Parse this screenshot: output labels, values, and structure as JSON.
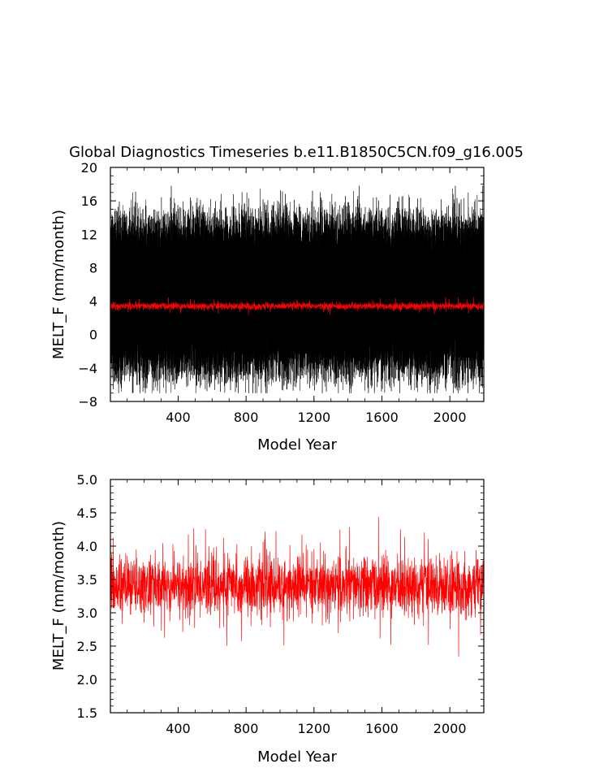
{
  "title": "Global Diagnostics Timeseries b.e11.B1850C5CN.f09_g16.005",
  "colors": {
    "annual": "#000000",
    "mean": "#ff0000",
    "axis": "#000000"
  },
  "chart_data": [
    {
      "type": "line",
      "title": "Global Diagnostics Timeseries b.e11.B1850C5CN.f09_g16.005",
      "xlabel": "Model Year",
      "ylabel": "MELT_F (mm/month)",
      "xlim": [
        1,
        2200
      ],
      "ylim": [
        -8,
        20
      ],
      "x_ticks": [
        400,
        800,
        1200,
        1600,
        2000
      ],
      "x_tick_labels": [
        "400",
        "800",
        "1200",
        "1600",
        "2000"
      ],
      "y_ticks": [
        -8,
        -4,
        0,
        4,
        8,
        12,
        16,
        20
      ],
      "y_tick_labels": [
        "−8",
        "−4",
        "0",
        "4",
        "8",
        "12",
        "16",
        "20"
      ],
      "grid": false,
      "series": [
        {
          "color": "#000000",
          "kind": "monthly",
          "mean": 4.6,
          "min": -7.0,
          "max": 17.8,
          "typical_range": [
            -6,
            15
          ]
        },
        {
          "color": "#ff0000",
          "kind": "annual-mean",
          "mean": 3.4,
          "min": 2.1,
          "max": 4.5
        }
      ]
    },
    {
      "type": "line",
      "xlabel": "Model Year",
      "ylabel": "MELT_F (mm/month)",
      "xlim": [
        1,
        2200
      ],
      "ylim": [
        1.5,
        5.0
      ],
      "x_ticks": [
        400,
        800,
        1200,
        1600,
        2000
      ],
      "x_tick_labels": [
        "400",
        "800",
        "1200",
        "1600",
        "2000"
      ],
      "y_ticks": [
        1.5,
        2.0,
        2.5,
        3.0,
        3.5,
        4.0,
        4.5,
        5.0
      ],
      "y_tick_labels": [
        "1.5",
        "2.0",
        "2.5",
        "3.0",
        "3.5",
        "4.0",
        "4.5",
        "5.0"
      ],
      "grid": false,
      "series": [
        {
          "color": "#ff0000",
          "kind": "annual-mean",
          "mean": 3.4,
          "min": 2.1,
          "max": 4.55,
          "typical_range": [
            2.8,
            4.0
          ]
        }
      ]
    }
  ]
}
